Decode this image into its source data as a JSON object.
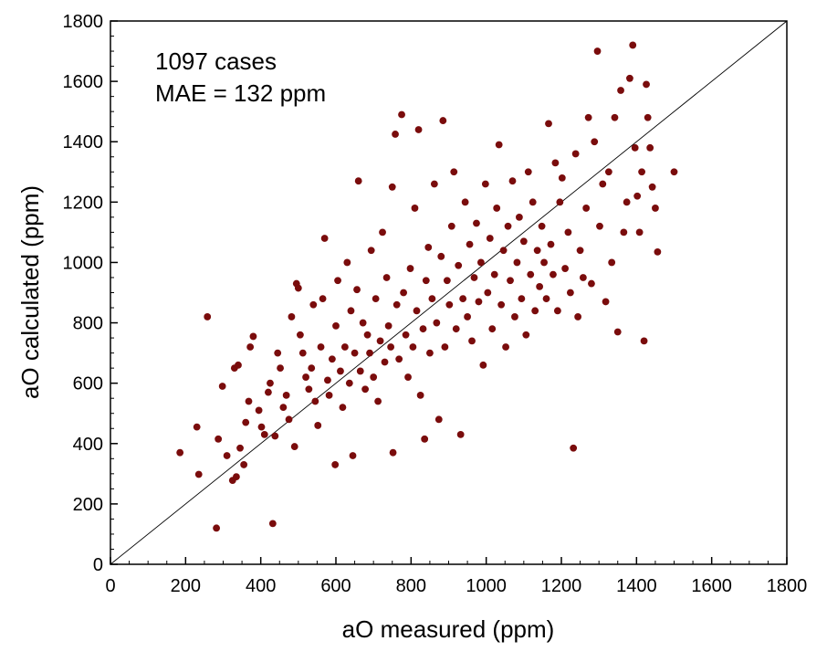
{
  "chart_data": {
    "type": "scatter",
    "title": "",
    "xlabel": "aO measured (ppm)",
    "ylabel": "aO calculated (ppm)",
    "xlim": [
      0,
      1800
    ],
    "ylim": [
      0,
      1800
    ],
    "xticks": [
      0,
      200,
      400,
      600,
      800,
      1000,
      1200,
      1400,
      1600,
      1800
    ],
    "yticks": [
      0,
      200,
      400,
      600,
      800,
      1000,
      1200,
      1400,
      1600,
      1800
    ],
    "annotations": [
      "1097 cases",
      "MAE = 132 ppm"
    ],
    "reference_line": {
      "label": "y = x",
      "from": [
        0,
        0
      ],
      "to": [
        1800,
        1800
      ]
    },
    "grid": false,
    "marker_color": "#7a0c0c",
    "series": [
      {
        "name": "cases",
        "points": [
          [
            185,
            370
          ],
          [
            230,
            455
          ],
          [
            235,
            298
          ],
          [
            258,
            820
          ],
          [
            282,
            120
          ],
          [
            287,
            415
          ],
          [
            298,
            590
          ],
          [
            310,
            360
          ],
          [
            325,
            278
          ],
          [
            335,
            290
          ],
          [
            345,
            385
          ],
          [
            330,
            650
          ],
          [
            340,
            660
          ],
          [
            355,
            330
          ],
          [
            360,
            470
          ],
          [
            368,
            540
          ],
          [
            372,
            720
          ],
          [
            380,
            755
          ],
          [
            395,
            510
          ],
          [
            402,
            455
          ],
          [
            410,
            430
          ],
          [
            420,
            570
          ],
          [
            425,
            600
          ],
          [
            432,
            135
          ],
          [
            438,
            425
          ],
          [
            445,
            700
          ],
          [
            452,
            650
          ],
          [
            460,
            520
          ],
          [
            468,
            560
          ],
          [
            475,
            480
          ],
          [
            482,
            820
          ],
          [
            490,
            390
          ],
          [
            495,
            930
          ],
          [
            500,
            915
          ],
          [
            505,
            760
          ],
          [
            512,
            700
          ],
          [
            520,
            620
          ],
          [
            528,
            580
          ],
          [
            535,
            650
          ],
          [
            540,
            860
          ],
          [
            545,
            540
          ],
          [
            552,
            460
          ],
          [
            560,
            720
          ],
          [
            565,
            880
          ],
          [
            570,
            1080
          ],
          [
            578,
            610
          ],
          [
            582,
            560
          ],
          [
            590,
            680
          ],
          [
            598,
            330
          ],
          [
            600,
            790
          ],
          [
            605,
            940
          ],
          [
            612,
            640
          ],
          [
            618,
            520
          ],
          [
            624,
            720
          ],
          [
            630,
            1000
          ],
          [
            636,
            600
          ],
          [
            640,
            840
          ],
          [
            645,
            360
          ],
          [
            650,
            700
          ],
          [
            656,
            910
          ],
          [
            660,
            1270
          ],
          [
            665,
            640
          ],
          [
            672,
            800
          ],
          [
            678,
            580
          ],
          [
            684,
            760
          ],
          [
            690,
            700
          ],
          [
            694,
            1040
          ],
          [
            700,
            620
          ],
          [
            706,
            880
          ],
          [
            712,
            540
          ],
          [
            718,
            740
          ],
          [
            724,
            1100
          ],
          [
            730,
            670
          ],
          [
            735,
            950
          ],
          [
            740,
            790
          ],
          [
            746,
            720
          ],
          [
            750,
            1250
          ],
          [
            752,
            370
          ],
          [
            758,
            1425
          ],
          [
            762,
            860
          ],
          [
            768,
            680
          ],
          [
            775,
            1490
          ],
          [
            780,
            900
          ],
          [
            786,
            760
          ],
          [
            792,
            620
          ],
          [
            798,
            980
          ],
          [
            805,
            720
          ],
          [
            810,
            1180
          ],
          [
            815,
            840
          ],
          [
            820,
            1440
          ],
          [
            825,
            560
          ],
          [
            832,
            780
          ],
          [
            836,
            415
          ],
          [
            840,
            940
          ],
          [
            846,
            1050
          ],
          [
            850,
            700
          ],
          [
            856,
            880
          ],
          [
            862,
            1260
          ],
          [
            868,
            800
          ],
          [
            874,
            480
          ],
          [
            880,
            1020
          ],
          [
            885,
            1470
          ],
          [
            890,
            720
          ],
          [
            896,
            940
          ],
          [
            902,
            860
          ],
          [
            908,
            1120
          ],
          [
            914,
            1300
          ],
          [
            920,
            780
          ],
          [
            926,
            990
          ],
          [
            932,
            430
          ],
          [
            938,
            880
          ],
          [
            944,
            1200
          ],
          [
            950,
            820
          ],
          [
            956,
            1060
          ],
          [
            962,
            740
          ],
          [
            968,
            950
          ],
          [
            974,
            1130
          ],
          [
            980,
            870
          ],
          [
            986,
            1000
          ],
          [
            992,
            660
          ],
          [
            998,
            1260
          ],
          [
            1004,
            900
          ],
          [
            1010,
            1080
          ],
          [
            1016,
            780
          ],
          [
            1022,
            960
          ],
          [
            1028,
            1180
          ],
          [
            1034,
            1390
          ],
          [
            1040,
            860
          ],
          [
            1046,
            1040
          ],
          [
            1052,
            720
          ],
          [
            1058,
            1120
          ],
          [
            1064,
            940
          ],
          [
            1070,
            1270
          ],
          [
            1076,
            820
          ],
          [
            1082,
            1000
          ],
          [
            1088,
            1150
          ],
          [
            1094,
            880
          ],
          [
            1100,
            1070
          ],
          [
            1106,
            760
          ],
          [
            1112,
            1300
          ],
          [
            1118,
            960
          ],
          [
            1124,
            1200
          ],
          [
            1130,
            840
          ],
          [
            1136,
            1040
          ],
          [
            1142,
            920
          ],
          [
            1148,
            1120
          ],
          [
            1154,
            1000
          ],
          [
            1160,
            880
          ],
          [
            1166,
            1460
          ],
          [
            1172,
            1060
          ],
          [
            1178,
            960
          ],
          [
            1184,
            1330
          ],
          [
            1190,
            840
          ],
          [
            1196,
            1200
          ],
          [
            1202,
            1280
          ],
          [
            1210,
            980
          ],
          [
            1218,
            1100
          ],
          [
            1224,
            900
          ],
          [
            1232,
            385
          ],
          [
            1238,
            1360
          ],
          [
            1244,
            820
          ],
          [
            1250,
            1040
          ],
          [
            1258,
            950
          ],
          [
            1266,
            1180
          ],
          [
            1272,
            1480
          ],
          [
            1280,
            930
          ],
          [
            1288,
            1400
          ],
          [
            1296,
            1700
          ],
          [
            1302,
            1120
          ],
          [
            1310,
            1260
          ],
          [
            1318,
            870
          ],
          [
            1326,
            1300
          ],
          [
            1334,
            1000
          ],
          [
            1342,
            1480
          ],
          [
            1350,
            770
          ],
          [
            1358,
            1570
          ],
          [
            1366,
            1100
          ],
          [
            1374,
            1200
          ],
          [
            1382,
            1610
          ],
          [
            1390,
            1720
          ],
          [
            1396,
            1380
          ],
          [
            1402,
            1220
          ],
          [
            1408,
            1100
          ],
          [
            1414,
            1300
          ],
          [
            1420,
            740
          ],
          [
            1426,
            1590
          ],
          [
            1430,
            1480
          ],
          [
            1436,
            1380
          ],
          [
            1442,
            1250
          ],
          [
            1450,
            1180
          ],
          [
            1456,
            1035
          ],
          [
            1500,
            1300
          ]
        ]
      }
    ]
  }
}
